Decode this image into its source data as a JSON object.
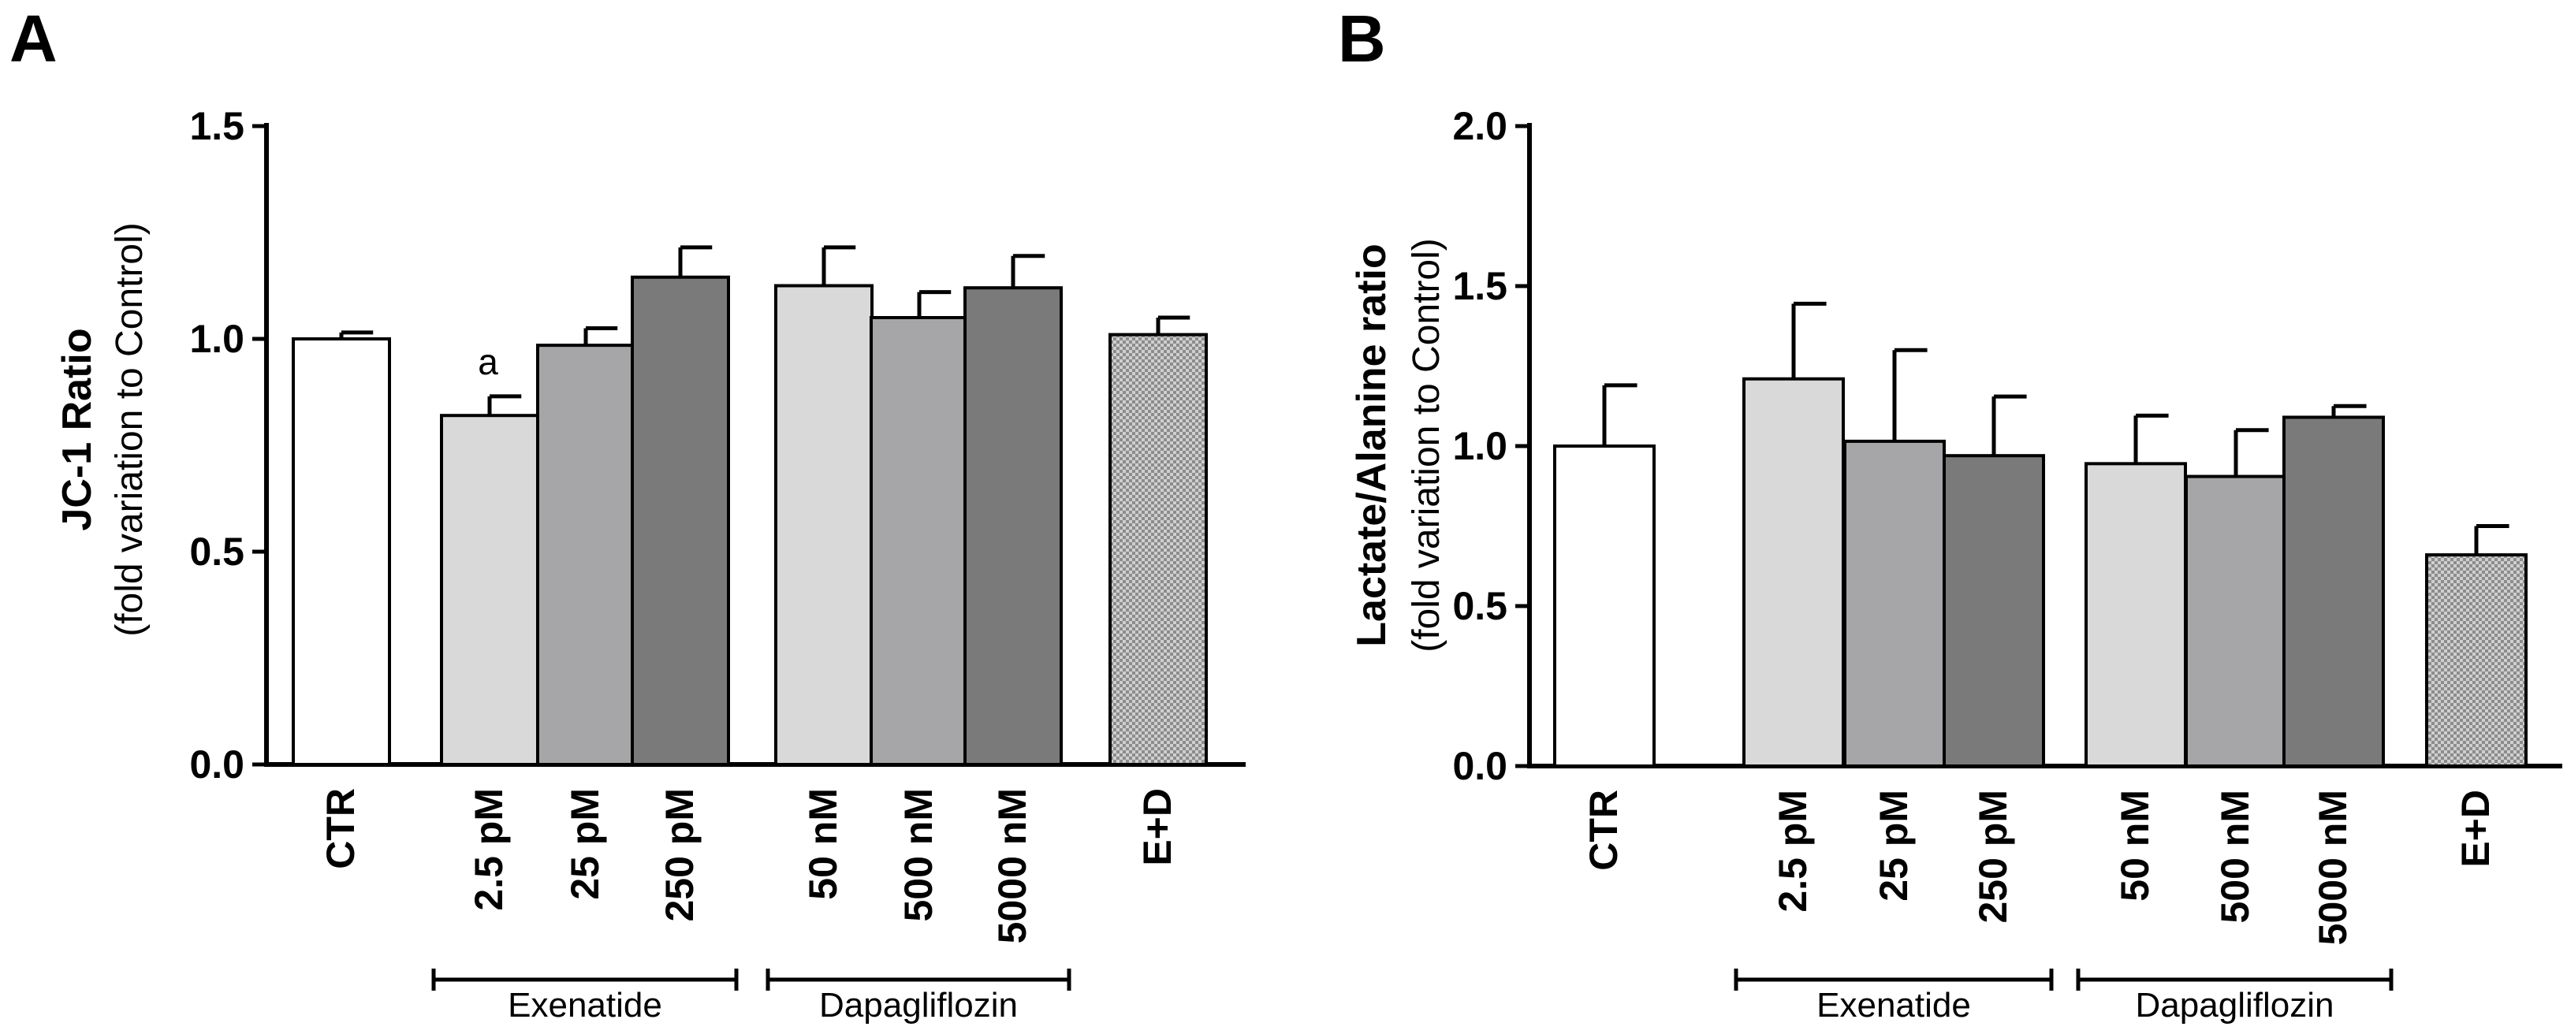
{
  "chart_data": [
    {
      "type": "bar",
      "panel": "A",
      "ylabel": "JC-1 Ratio",
      "ylabel_sub": "(fold variation to Control)",
      "ylim": [
        0,
        1.5
      ],
      "yticks": [
        0.0,
        0.5,
        1.0,
        1.5
      ],
      "ytick_labels": [
        "0.0",
        "0.5",
        "1.0",
        "1.5"
      ],
      "categories": [
        "CTR",
        "2.5 pM",
        "25 pM",
        "250 pM",
        "50 nM",
        "500 nM",
        "5000 nM",
        "E+D"
      ],
      "values": [
        1.0,
        0.82,
        0.985,
        1.145,
        1.125,
        1.05,
        1.12,
        1.01
      ],
      "errors": [
        0.015,
        0.045,
        0.04,
        0.07,
        0.09,
        0.06,
        0.075,
        0.04
      ],
      "fills": [
        "#ffffff",
        "#d9d9d9",
        "#a6a6a8",
        "#7a7a7a",
        "#d9d9d9",
        "#a6a6a8",
        "#7a7a7a",
        "pattern"
      ],
      "annotations": [
        {
          "category": "2.5 pM",
          "text": "a"
        }
      ],
      "groups": [
        {
          "label": "Exenatide",
          "from": 1,
          "to": 3
        },
        {
          "label": "Dapagliflozin",
          "from": 4,
          "to": 6
        }
      ]
    },
    {
      "type": "bar",
      "panel": "B",
      "ylabel": "Lactate/Alanine ratio",
      "ylabel_sub": "(fold variation to Control)",
      "ylim": [
        0,
        2.0
      ],
      "yticks": [
        0.0,
        0.5,
        1.0,
        1.5,
        2.0
      ],
      "ytick_labels": [
        "0.0",
        "0.5",
        "1.0",
        "1.5",
        "2.0"
      ],
      "categories": [
        "CTR",
        "2.5 pM",
        "25 pM",
        "250 pM",
        "50 nM",
        "500 nM",
        "5000 nM",
        "E+D"
      ],
      "values": [
        1.0,
        1.21,
        1.015,
        0.97,
        0.945,
        0.905,
        1.09,
        0.66
      ],
      "errors": [
        0.19,
        0.235,
        0.285,
        0.185,
        0.15,
        0.145,
        0.035,
        0.09
      ],
      "fills": [
        "#ffffff",
        "#d9d9d9",
        "#a6a6a8",
        "#7a7a7a",
        "#d9d9d9",
        "#a6a6a8",
        "#7a7a7a",
        "pattern"
      ],
      "annotations": [],
      "groups": [
        {
          "label": "Exenatide",
          "from": 1,
          "to": 3
        },
        {
          "label": "Dapagliflozin",
          "from": 4,
          "to": 6
        }
      ]
    }
  ]
}
